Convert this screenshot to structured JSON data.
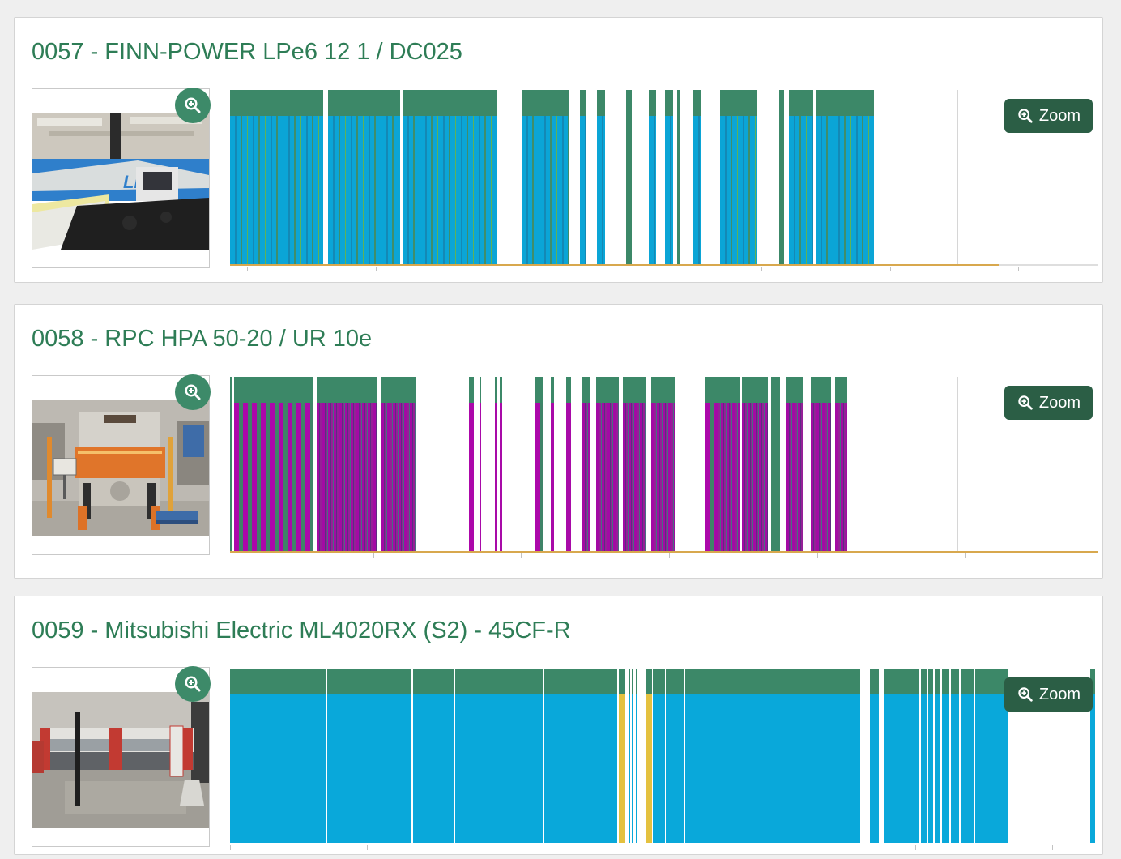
{
  "ui": {
    "zoom_button_label": "Zoom"
  },
  "colors": {
    "title_green": "#2E7D56",
    "button_green": "#2B5E45",
    "badge_green": "#3D8A69",
    "cap_green": "#3C8868",
    "cyan": "#09A8DA",
    "magenta": "#A80AA8",
    "yellow": "#E4C13F",
    "axis_orange": "#D8A84E",
    "page_bg": "#EFEFEF",
    "panel_border": "#D4D4D4"
  },
  "machines": [
    {
      "title": "0057 - FINN-POWER LPe6 12 1 / DC025",
      "photo_alt": "Blue FINN-POWER punching machine in workshop hall",
      "chart": {
        "type": "timeline-status-bars",
        "cap_color": "#3C8868",
        "bar_color": "#09A8DA",
        "axis_color": "#D8A84E",
        "axis_extent": 0.885,
        "axis_base": true,
        "gridline": 0.838,
        "ticks": [
          0.02,
          0.168,
          0.316,
          0.464,
          0.612,
          0.76,
          0.908
        ],
        "segments": [
          [
            "a",
            0,
            10.7
          ],
          [
            "a",
            11.3,
            8.3
          ],
          [
            "a",
            19.9,
            10.9
          ],
          [
            "a",
            33.6,
            5.4
          ],
          [
            "a",
            40.3,
            0.7
          ],
          [
            "a",
            42.3,
            0.9
          ],
          [
            "g",
            45.6,
            0.7
          ],
          [
            "a",
            48.2,
            0.9
          ],
          [
            "a",
            50.1,
            0.9
          ],
          [
            "g",
            51.5,
            0.3
          ],
          [
            "a",
            53.4,
            0.8
          ],
          [
            "a",
            56.4,
            4.2
          ],
          [
            "g",
            63.2,
            0.6
          ],
          [
            "a",
            64.4,
            2.8
          ],
          [
            "a",
            67.4,
            6.8
          ]
        ]
      }
    },
    {
      "title": "0058 - RPC HPA 50-20 / UR 10e",
      "photo_alt": "Orange RPC press machine with robot cell",
      "chart": {
        "type": "timeline-status-bars",
        "cap_color": "#3C8868",
        "bar_color": "#A80AA8",
        "axis_color": "#D8A84E",
        "axis_extent": 1.0,
        "axis_base": true,
        "gridline": 0.838,
        "ticks": [
          0.165,
          0.335,
          0.506,
          0.676,
          0.847
        ],
        "segments": [
          [
            "g",
            0,
            0.3
          ],
          [
            "w",
            0.5,
            9.0
          ],
          [
            "d",
            10.0,
            7.0
          ],
          [
            "d",
            17.4,
            4.0
          ],
          [
            "w",
            27.5,
            0.6
          ],
          [
            "t",
            28.7,
            0.2
          ],
          [
            "t",
            30.5,
            0.2
          ],
          [
            "t",
            31.1,
            0.2
          ],
          [
            "w",
            35.2,
            0.8
          ],
          [
            "t",
            36.9,
            0.4
          ],
          [
            "t",
            38.7,
            0.6
          ],
          [
            "d",
            40.6,
            0.9
          ],
          [
            "d",
            42.2,
            2.6
          ],
          [
            "d",
            45.2,
            2.7
          ],
          [
            "d",
            48.5,
            2.7
          ],
          [
            "w",
            54.8,
            1.1
          ],
          [
            "d",
            55.9,
            2.8
          ],
          [
            "d",
            59.0,
            2.9
          ],
          [
            "g",
            62.3,
            1.0
          ],
          [
            "d",
            64.1,
            1.9
          ],
          [
            "d",
            66.9,
            2.3
          ],
          [
            "d",
            69.7,
            1.4
          ]
        ]
      }
    },
    {
      "title": "0059 - Mitsubishi Electric ML4020RX (S2) - 45CF-R",
      "photo_alt": "White and red Mitsubishi Electric laser cutting machine",
      "chart": {
        "type": "timeline-status-bars",
        "cap_color": "#3C8868",
        "bar_color": "#09A8DA",
        "alarm_color": "#E4C13F",
        "axis_extent": 0,
        "axis_base": false,
        "gridline": null,
        "ticks": [
          0.0,
          0.158,
          0.316,
          0.473,
          0.631,
          0.789,
          0.947
        ],
        "segments": [
          [
            "c",
            0,
            6.1
          ],
          [
            "c",
            6.2,
            4.9
          ],
          [
            "c",
            11.2,
            9.7
          ],
          [
            "c",
            21.1,
            4.7
          ],
          [
            "c",
            25.9,
            10.2
          ],
          [
            "c",
            36.2,
            8.4
          ],
          [
            "y",
            44.8,
            0.7
          ],
          [
            "t",
            45.9,
            0.15
          ],
          [
            "t",
            46.3,
            0.15
          ],
          [
            "t",
            46.7,
            0.15
          ],
          [
            "y",
            47.9,
            0.7
          ],
          [
            "c",
            48.7,
            1.4
          ],
          [
            "c",
            50.2,
            2.1
          ],
          [
            "c",
            52.4,
            20.2
          ],
          [
            "c",
            73.7,
            1.0
          ],
          [
            "c",
            75.4,
            4.0
          ],
          [
            "c",
            79.6,
            0.6
          ],
          [
            "c",
            80.4,
            0.6
          ],
          [
            "c",
            81.2,
            0.6
          ],
          [
            "c",
            82.0,
            0.8
          ],
          [
            "c",
            83.0,
            1.0
          ],
          [
            "c",
            84.2,
            1.4
          ],
          [
            "c",
            85.8,
            3.8
          ],
          [
            "c",
            99.1,
            0.5
          ]
        ]
      }
    }
  ]
}
